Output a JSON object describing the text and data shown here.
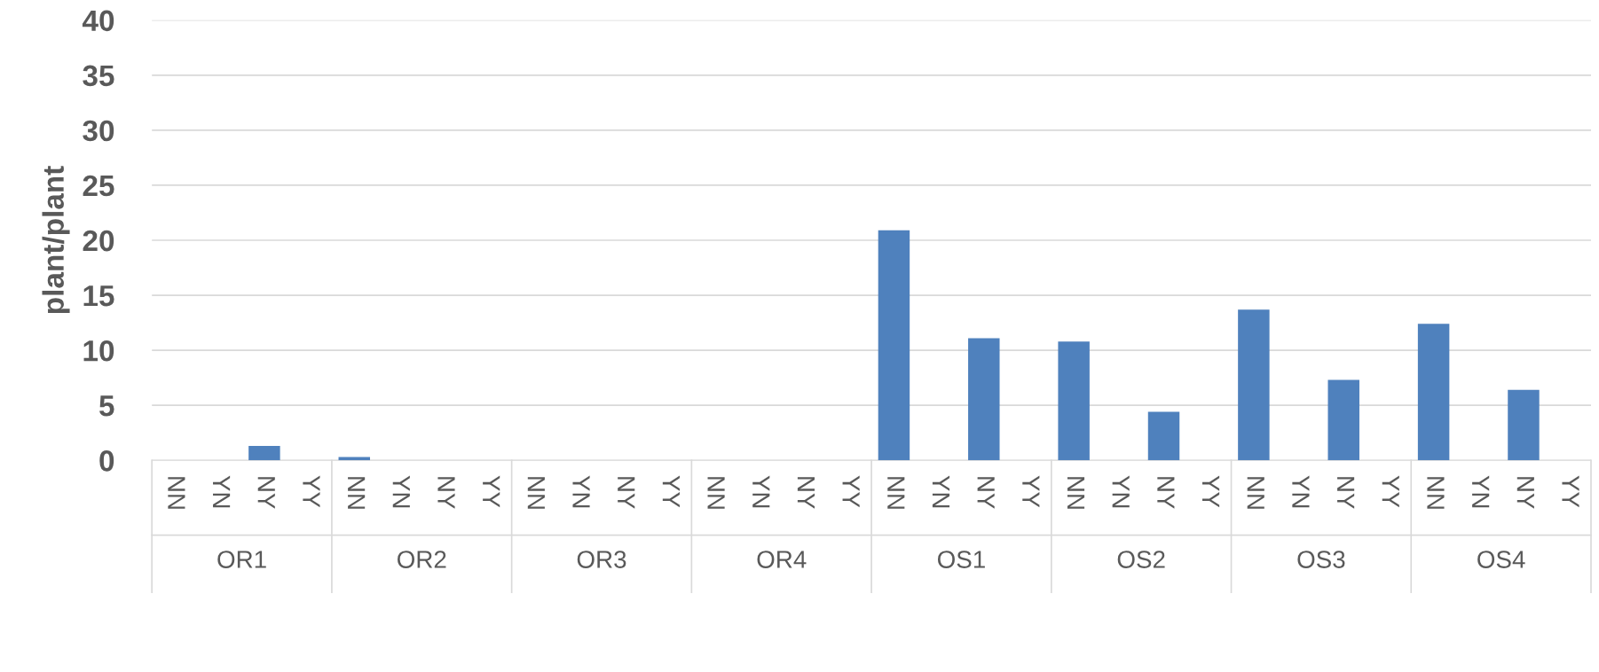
{
  "chart_data": {
    "type": "bar",
    "ylabel": "plant/plant",
    "categories": [
      "NN",
      "YN",
      "NY",
      "YY",
      "NN",
      "YN",
      "NY",
      "YY",
      "NN",
      "YN",
      "NY",
      "YY",
      "NN",
      "YN",
      "NY",
      "YY",
      "NN",
      "YN",
      "NY",
      "YY",
      "NN",
      "YN",
      "NY",
      "YY",
      "NN",
      "YN",
      "NY",
      "YY",
      "NN",
      "YN",
      "NY",
      "YY"
    ],
    "values": [
      0,
      0,
      1.3,
      0,
      0.3,
      0,
      0,
      0,
      0,
      0,
      0,
      0,
      0,
      0,
      0,
      0,
      20.9,
      0,
      11.1,
      0,
      10.8,
      0,
      4.4,
      0,
      13.7,
      0,
      7.3,
      0,
      12.4,
      0,
      6.4,
      0
    ],
    "color": "#4f81bd",
    "annotations": [
      "OR1",
      "OR2",
      "OR3",
      "OR4",
      "OS1",
      "OS2",
      "OS3",
      "OS4"
    ],
    "ylim": [
      0,
      40
    ],
    "yticks": [
      0,
      5,
      10,
      15,
      20,
      25,
      30,
      35,
      40
    ],
    "grid": "y",
    "legend": false
  }
}
